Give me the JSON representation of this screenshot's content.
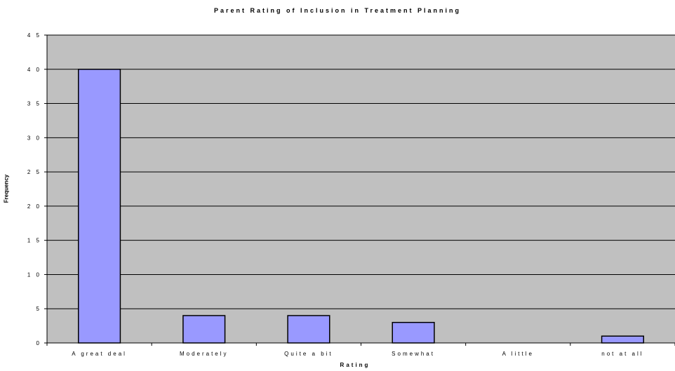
{
  "chart_data": {
    "type": "bar",
    "title": "Parent Rating of Inclusion in Treatment Planning",
    "xlabel": "Rating",
    "ylabel": "Frequency",
    "categories": [
      "A great deal",
      "Moderately",
      "Quite a bit",
      "Somewhat",
      "A little",
      "not at all"
    ],
    "values": [
      40,
      4,
      4,
      3,
      0,
      1
    ],
    "ylim": [
      0,
      45
    ],
    "yticks": [
      0,
      5,
      10,
      15,
      20,
      25,
      30,
      35,
      40,
      45
    ],
    "ytick_labels": [
      "0",
      "5",
      "1 0",
      "1 5",
      "2 0",
      "2 5",
      "3 0",
      "3 5",
      "4 0",
      "4 5"
    ],
    "grid": true,
    "legend": "none",
    "colors": {
      "plot_background": "#c0c0c0",
      "bar_fill": "#9999ff",
      "bar_stroke": "#000000",
      "gridline": "#000000"
    }
  }
}
